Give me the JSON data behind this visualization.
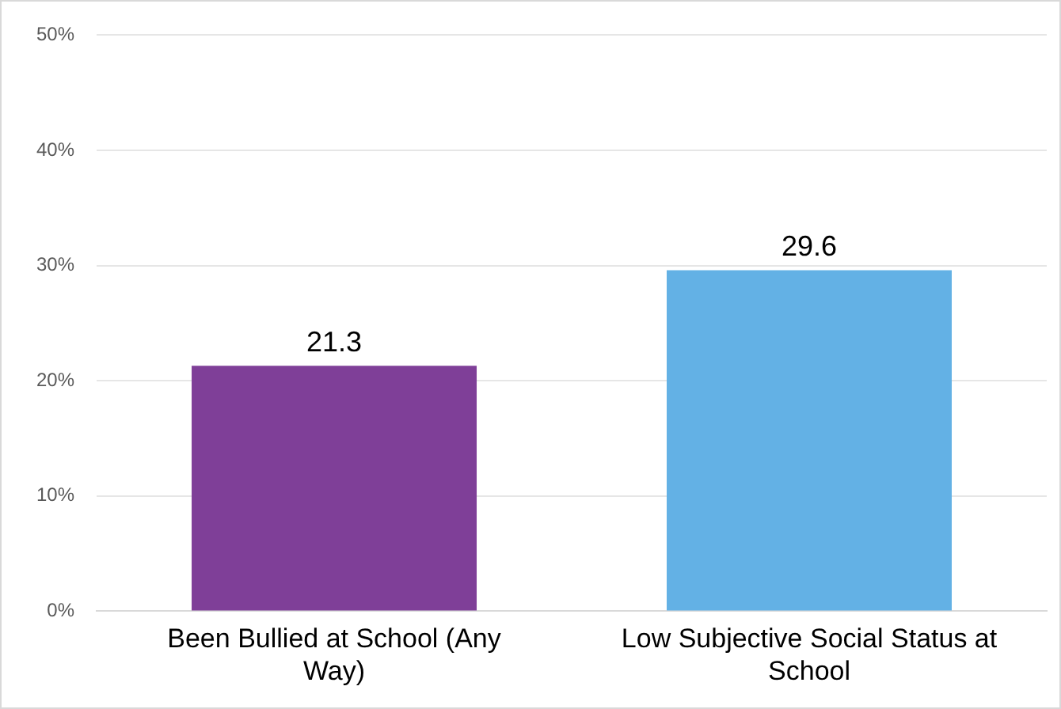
{
  "chart_data": {
    "type": "bar",
    "categories": [
      "Been Bullied at School (Any Way)",
      "Low Subjective Social Status at School"
    ],
    "values": [
      21.3,
      29.6
    ],
    "colors": [
      "#7f3f98",
      "#63b1e5"
    ],
    "ylim": [
      0,
      50
    ],
    "yticks": [
      {
        "value": 0,
        "label": "0%"
      },
      {
        "value": 10,
        "label": "10%"
      },
      {
        "value": 20,
        "label": "20%"
      },
      {
        "value": 30,
        "label": "30%"
      },
      {
        "value": 40,
        "label": "40%"
      },
      {
        "value": 50,
        "label": "50%"
      }
    ],
    "grid": "y",
    "data_labels": true,
    "legend": false
  }
}
